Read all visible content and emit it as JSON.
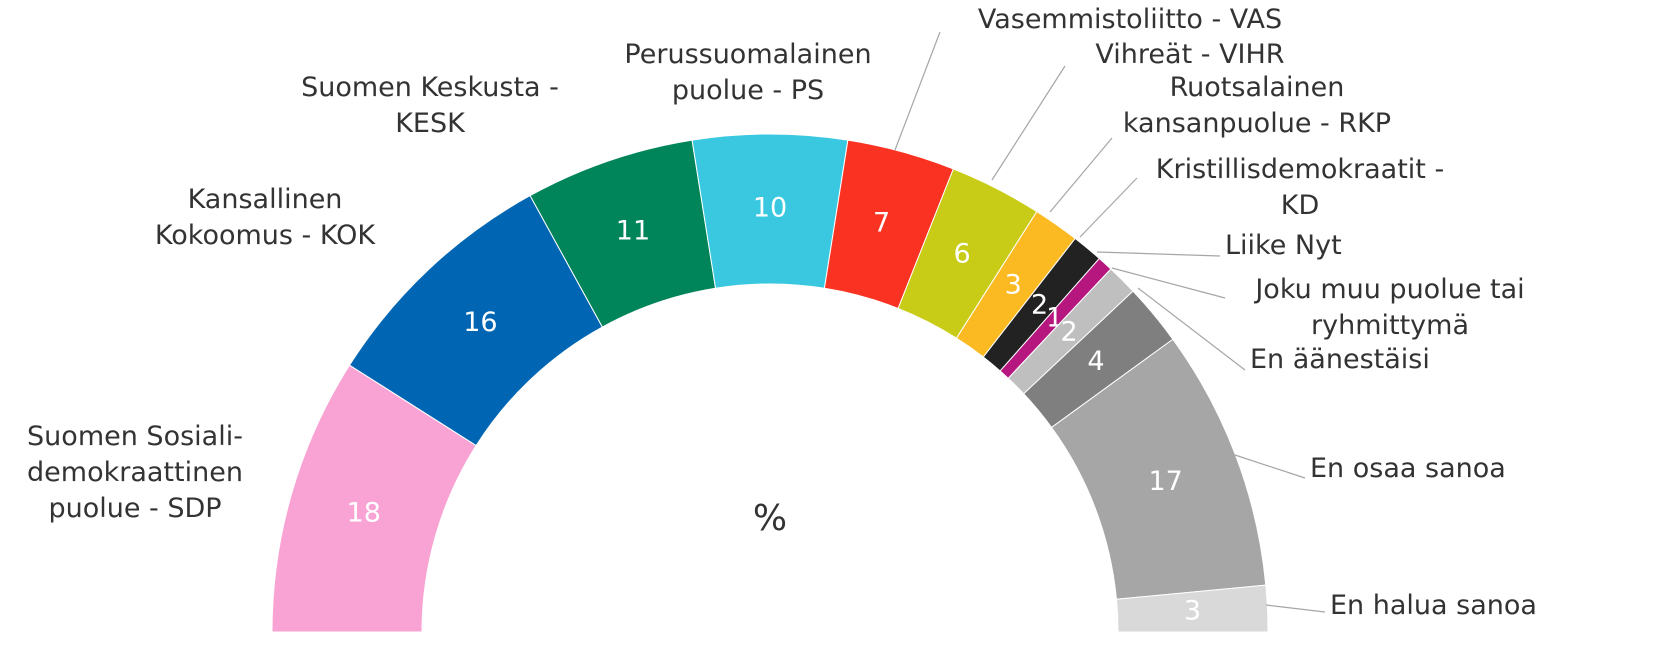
{
  "chart_data": {
    "type": "pie",
    "shape": "half-donut",
    "center_label": "%",
    "categories": [
      "Suomen Sosiali-\ndemokraattinen\npuolue - SDP",
      "Kansallinen\nKokoomus - KOK",
      "Suomen Keskusta -\nKESK",
      "Perussuomalainen\npuolue - PS",
      "Vasemmistoliitto - VAS",
      "Vihreät - VIHR",
      "Ruotsalainen\nkansanpuolue - RKP",
      "Kristillisdemokraatit -\nKD",
      "Liike Nyt",
      "Joku muu puolue tai\nryhmittymä",
      "En äänestäisi",
      "En osaa sanoa",
      "En halua sanoa"
    ],
    "values": [
      18,
      16,
      11,
      10,
      7,
      6,
      3,
      2,
      1,
      2,
      4,
      17,
      3
    ],
    "colors": [
      "#f9a3d5",
      "#0066b3",
      "#00845a",
      "#3ac8e0",
      "#f93222",
      "#c8cc16",
      "#fbba21",
      "#222222",
      "#b5177f",
      "#bfbfbf",
      "#7f7f7f",
      "#a6a6a6",
      "#d9d9d9"
    ]
  }
}
